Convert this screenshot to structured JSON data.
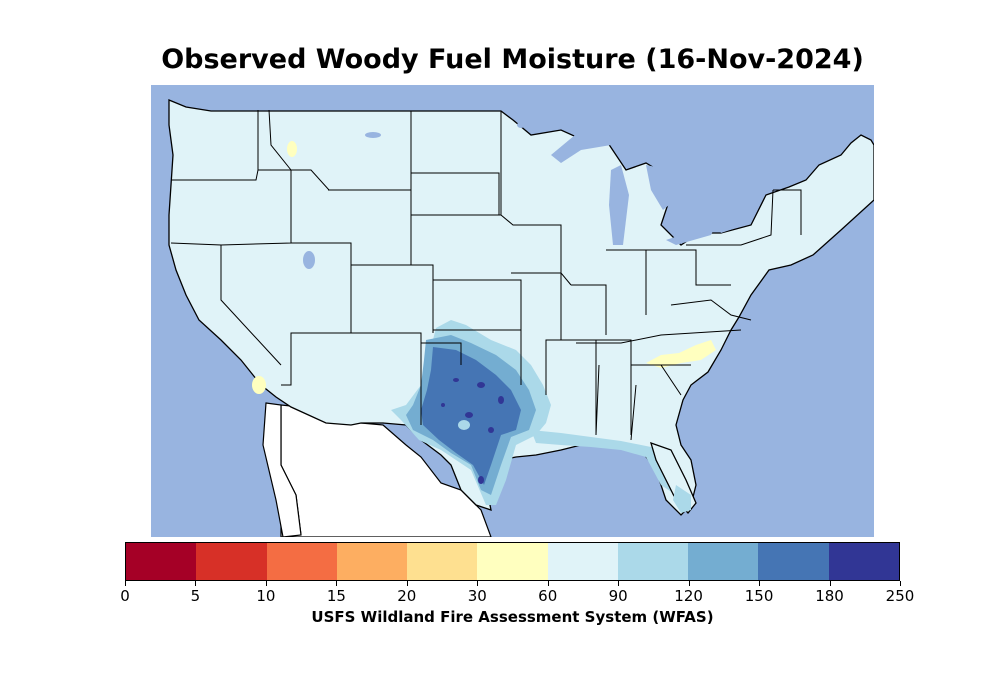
{
  "title": "Observed Woody Fuel Moisture (16-Nov-2024)",
  "source": "USFS Wildland Fire Assessment System (WFAS)",
  "colors": {
    "ocean": "#98b4e0",
    "land_default": "#e0f3f8",
    "mexico_land": "#ffffff"
  },
  "legend": {
    "ticks": [
      "0",
      "5",
      "10",
      "15",
      "20",
      "30",
      "60",
      "90",
      "120",
      "150",
      "180",
      "250"
    ],
    "bins": [
      {
        "range": "0-5",
        "color": "#a50026"
      },
      {
        "range": "5-10",
        "color": "#d73027"
      },
      {
        "range": "10-15",
        "color": "#f46d43"
      },
      {
        "range": "15-20",
        "color": "#fdae61"
      },
      {
        "range": "20-30",
        "color": "#fee090"
      },
      {
        "range": "30-60",
        "color": "#ffffbf"
      },
      {
        "range": "60-90",
        "color": "#e0f3f8"
      },
      {
        "range": "90-120",
        "color": "#abd9e9"
      },
      {
        "range": "120-150",
        "color": "#74add1"
      },
      {
        "range": "150-180",
        "color": "#4575b4"
      },
      {
        "range": "180-250",
        "color": "#313695"
      }
    ]
  },
  "map_regions": {
    "dominant_range": "60-90",
    "texas_core_range": "150-180",
    "texas_peaks_range": "180-250",
    "texas_margin_range": "90-120",
    "dry_spots_range": "30-60",
    "dry_spots": [
      "western Montana",
      "southern California",
      "eastern Tennessee / western North Carolina"
    ]
  }
}
